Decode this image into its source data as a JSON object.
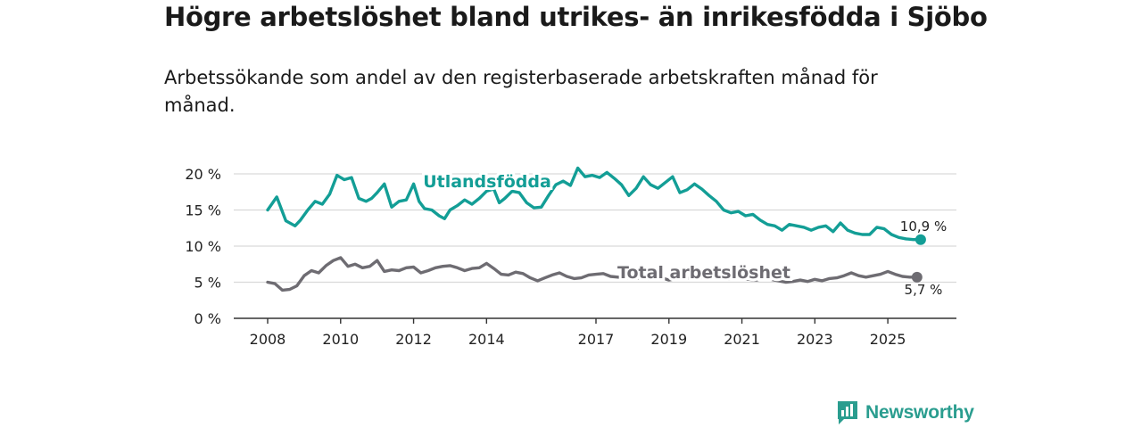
{
  "title": "Högre arbetslöshet bland utrikes- än inrikesfödda i Sjöbo",
  "subtitle": "Arbetssökande som andel av den registerbaserade arbetskraften månad för månad.",
  "brand": {
    "name": "Newsworthy",
    "logo_icon": "newsworthy-logo-icon"
  },
  "colors": {
    "utlandsfodda": "#139e96",
    "total": "#6e6c72",
    "grid": "#d9d9d9",
    "axis": "#333333",
    "brand": "#2a9d8f"
  },
  "chart_data": {
    "type": "line",
    "title": "Högre arbetslöshet bland utrikes- än inrikesfödda i Sjöbo",
    "xlabel": "",
    "ylabel": "",
    "xlim": [
      2008,
      2026
    ],
    "ylim": [
      0,
      20
    ],
    "grid": true,
    "x_ticks": [
      2008,
      2010,
      2012,
      2014,
      2017,
      2019,
      2021,
      2023,
      2025
    ],
    "x_tick_labels": [
      "2008",
      "2010",
      "2012",
      "2014",
      "2017",
      "2019",
      "2021",
      "2023",
      "2025"
    ],
    "y_ticks": [
      0,
      5,
      10,
      15,
      20
    ],
    "y_tick_labels": [
      "0 %",
      "5 %",
      "10 %",
      "15 %",
      "20 %"
    ],
    "series": [
      {
        "name": "Utlandsfödda",
        "label": "Utlandsfödda",
        "end_label": "10,9 %",
        "end_value": 10.9,
        "x": [
          2008.0,
          2008.25,
          2008.5,
          2008.75,
          2008.9,
          2009.1,
          2009.3,
          2009.5,
          2009.7,
          2009.9,
          2010.1,
          2010.3,
          2010.5,
          2010.7,
          2010.85,
          2011.0,
          2011.2,
          2011.4,
          2011.6,
          2011.8,
          2012.0,
          2012.15,
          2012.3,
          2012.5,
          2012.7,
          2012.85,
          2013.0,
          2013.2,
          2013.4,
          2013.6,
          2013.8,
          2014.0,
          2014.2,
          2014.35,
          2014.5,
          2014.7,
          2014.9,
          2015.1,
          2015.3,
          2015.5,
          2015.7,
          2015.9,
          2016.1,
          2016.3,
          2016.5,
          2016.7,
          2016.9,
          2017.1,
          2017.3,
          2017.5,
          2017.7,
          2017.9,
          2018.1,
          2018.3,
          2018.5,
          2018.7,
          2018.9,
          2019.1,
          2019.3,
          2019.5,
          2019.7,
          2019.9,
          2020.1,
          2020.3,
          2020.5,
          2020.7,
          2020.9,
          2021.1,
          2021.3,
          2021.5,
          2021.7,
          2021.9,
          2022.1,
          2022.3,
          2022.5,
          2022.7,
          2022.9,
          2023.1,
          2023.3,
          2023.5,
          2023.7,
          2023.9,
          2024.1,
          2024.3,
          2024.5,
          2024.7,
          2024.9,
          2025.1,
          2025.3,
          2025.5,
          2025.7,
          2025.9
        ],
        "values": [
          15.0,
          16.8,
          13.5,
          12.8,
          13.6,
          15.0,
          16.2,
          15.8,
          17.2,
          19.8,
          19.2,
          19.5,
          16.6,
          16.2,
          16.6,
          17.4,
          18.6,
          15.4,
          16.2,
          16.4,
          18.6,
          16.2,
          15.2,
          15.0,
          14.2,
          13.8,
          15.0,
          15.6,
          16.4,
          15.8,
          16.6,
          17.6,
          17.9,
          16.0,
          16.6,
          17.6,
          17.4,
          16.0,
          15.3,
          15.4,
          17.0,
          18.5,
          19.0,
          18.4,
          20.8,
          19.6,
          19.8,
          19.5,
          20.2,
          19.4,
          18.5,
          17.0,
          18.0,
          19.6,
          18.5,
          18.0,
          18.8,
          19.6,
          17.4,
          17.8,
          18.6,
          17.9,
          17.0,
          16.2,
          15.0,
          14.6,
          14.8,
          14.2,
          14.4,
          13.6,
          13.0,
          12.8,
          12.2,
          13.0,
          12.8,
          12.6,
          12.2,
          12.6,
          12.8,
          12.0,
          13.2,
          12.2,
          11.8,
          11.6,
          11.6,
          12.6,
          12.4,
          11.6,
          11.2,
          11.0,
          10.9,
          10.9
        ]
      },
      {
        "name": "Total arbetslöshet",
        "label": "Total arbetslöshet",
        "end_label": "5,7 %",
        "end_value": 5.7,
        "x": [
          2008.0,
          2008.2,
          2008.4,
          2008.6,
          2008.8,
          2009.0,
          2009.2,
          2009.4,
          2009.6,
          2009.8,
          2010.0,
          2010.2,
          2010.4,
          2010.6,
          2010.8,
          2011.0,
          2011.2,
          2011.4,
          2011.6,
          2011.8,
          2012.0,
          2012.2,
          2012.4,
          2012.6,
          2012.8,
          2013.0,
          2013.2,
          2013.4,
          2013.6,
          2013.8,
          2014.0,
          2014.2,
          2014.4,
          2014.6,
          2014.8,
          2015.0,
          2015.2,
          2015.4,
          2015.6,
          2015.8,
          2016.0,
          2016.2,
          2016.4,
          2016.6,
          2016.8,
          2017.0,
          2017.2,
          2017.4,
          2017.6,
          2017.8,
          2018.0,
          2018.2,
          2018.4,
          2018.6,
          2018.8,
          2019.0,
          2019.2,
          2019.4,
          2019.6,
          2019.8,
          2020.0,
          2020.2,
          2020.4,
          2020.6,
          2020.8,
          2021.0,
          2021.2,
          2021.4,
          2021.6,
          2021.8,
          2022.0,
          2022.2,
          2022.4,
          2022.6,
          2022.8,
          2023.0,
          2023.2,
          2023.4,
          2023.6,
          2023.8,
          2024.0,
          2024.2,
          2024.4,
          2024.6,
          2024.8,
          2025.0,
          2025.2,
          2025.4,
          2025.6,
          2025.8
        ],
        "values": [
          5.0,
          4.8,
          3.9,
          4.0,
          4.5,
          5.9,
          6.6,
          6.3,
          7.3,
          8.0,
          8.4,
          7.2,
          7.5,
          7.0,
          7.2,
          8.0,
          6.5,
          6.7,
          6.6,
          7.0,
          7.1,
          6.3,
          6.6,
          7.0,
          7.2,
          7.3,
          7.0,
          6.6,
          6.9,
          7.0,
          7.6,
          6.9,
          6.1,
          6.0,
          6.4,
          6.2,
          5.6,
          5.2,
          5.6,
          6.0,
          6.3,
          5.8,
          5.5,
          5.6,
          6.0,
          6.1,
          6.2,
          5.8,
          5.7,
          5.6,
          5.5,
          5.6,
          5.4,
          5.5,
          5.6,
          5.3,
          5.5,
          5.4,
          5.6,
          5.5,
          5.8,
          5.6,
          5.5,
          5.4,
          5.6,
          5.5,
          5.4,
          5.3,
          5.6,
          5.4,
          5.2,
          5.0,
          5.1,
          5.3,
          5.1,
          5.4,
          5.2,
          5.5,
          5.6,
          5.9,
          6.3,
          5.9,
          5.7,
          5.9,
          6.1,
          6.5,
          6.1,
          5.8,
          5.7,
          5.7
        ]
      }
    ]
  }
}
